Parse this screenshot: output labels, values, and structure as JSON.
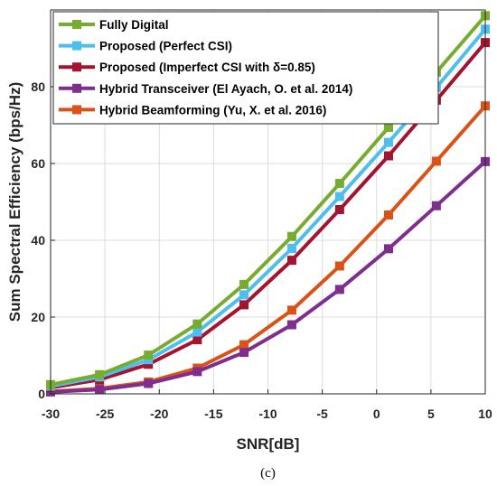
{
  "chart_data": {
    "type": "line",
    "xlabel": "SNR[dB]",
    "ylabel": "Sum Spectral Efficiency (bps/Hz)",
    "xlim": [
      -30,
      10
    ],
    "ylim": [
      0,
      100
    ],
    "xticks": [
      "-30",
      "-25",
      "-20",
      "-15",
      "-10",
      "-5",
      "0",
      "5",
      "10"
    ],
    "yticks": [
      "0",
      "20",
      "40",
      "60",
      "80"
    ],
    "grid": true,
    "legend_position": "top-left",
    "caption": "(c)",
    "x": [
      -30,
      -25.5,
      -21,
      -16.5,
      -12.2,
      -7.8,
      -3.4,
      1.1,
      5.5,
      10
    ],
    "series": [
      {
        "name": "Fully Digital",
        "color": "#77ac30",
        "marker": "square",
        "values": [
          2.4,
          5.0,
          10.1,
          18.2,
          28.5,
          41.0,
          54.8,
          69.4,
          83.8,
          98.5
        ]
      },
      {
        "name": "Proposed (Perfect CSI)",
        "color": "#4dbeee",
        "marker": "square",
        "values": [
          2.0,
          4.4,
          8.9,
          16.1,
          25.8,
          37.9,
          51.4,
          65.5,
          79.8,
          95.0
        ]
      },
      {
        "name": "Proposed (Imperfect CSI with δ=0.85)",
        "color": "#a2142f",
        "marker": "square",
        "values": [
          1.6,
          3.7,
          7.7,
          14.1,
          23.2,
          34.8,
          48.0,
          62.0,
          76.5,
          91.5
        ]
      },
      {
        "name": "Hybrid Transceiver (El Ayach, O. et al. 2014)",
        "color": "#7e2f8e",
        "marker": "square",
        "values": [
          0.5,
          1.1,
          2.7,
          5.8,
          10.8,
          18.0,
          27.2,
          37.8,
          49.0,
          60.5
        ]
      },
      {
        "name": "Hybrid Beamforming (Yu, X. et al. 2016)",
        "color": "#d95319",
        "marker": "square",
        "values": [
          0.6,
          1.4,
          3.1,
          6.7,
          12.8,
          21.8,
          33.3,
          46.6,
          60.6,
          75.0
        ]
      }
    ],
    "legend_draw_order": [
      0,
      1,
      2,
      3,
      4
    ],
    "series_draw_order": [
      4,
      3,
      2,
      1,
      0
    ]
  }
}
